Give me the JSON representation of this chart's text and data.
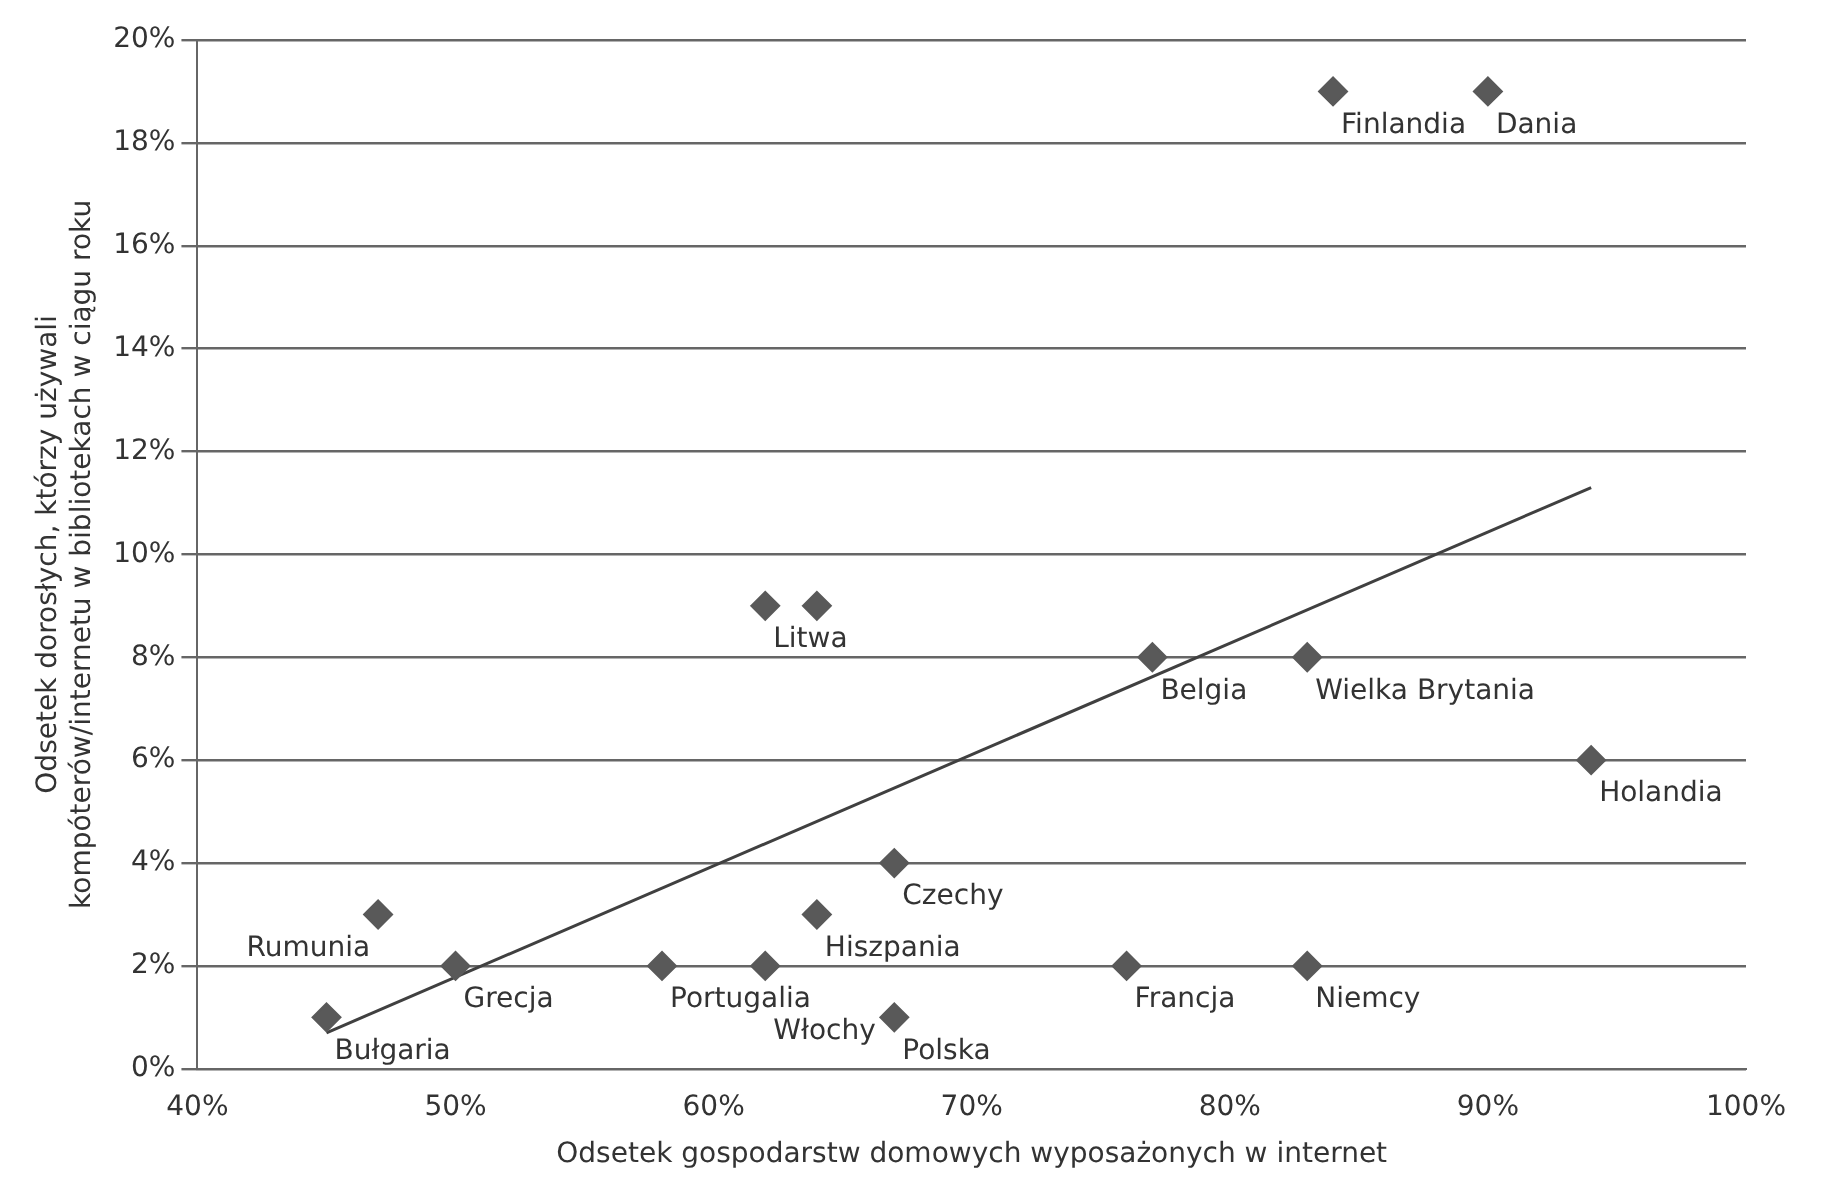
{
  "chart_data": {
    "type": "scatter",
    "xlabel": "Odsetek gospodarstw domowych wyposażonych w internet",
    "ylabel": "Odsetek dorosłych, którzy używali kompóterów/internetu w bibliotekach w ciągu roku",
    "series": [
      {
        "type": "scatter",
        "color": "#595959",
        "marker": "diamond",
        "x": [
          84,
          90,
          62,
          64,
          77,
          83,
          94,
          67,
          64,
          47,
          50,
          58,
          62,
          67,
          76,
          83,
          45
        ],
        "values": [
          19,
          19,
          9,
          9,
          8,
          8,
          6,
          4,
          3,
          3,
          2,
          2,
          2,
          1,
          2,
          2,
          1
        ]
      },
      {
        "type": "line",
        "color": "#404040",
        "marker": "none",
        "line_style": "solid",
        "x": [
          45,
          94
        ],
        "values": [
          0.7,
          11.3
        ]
      }
    ],
    "annotations": [
      {
        "text": "Finlandia",
        "x": 84,
        "y": 19
      },
      {
        "text": "Dania",
        "x": 90,
        "y": 19
      },
      {
        "text": "Litwa",
        "x": 62,
        "y": 9
      },
      {
        "text": "Belgia",
        "x": 77,
        "y": 8
      },
      {
        "text": "Wielka Brytania",
        "x": 83,
        "y": 8
      },
      {
        "text": "Holandia",
        "x": 94,
        "y": 6
      },
      {
        "text": "Czechy",
        "x": 67,
        "y": 4
      },
      {
        "text": "Hiszpania",
        "x": 64,
        "y": 3
      },
      {
        "text": "Rumunia",
        "x": 47,
        "y": 3
      },
      {
        "text": "Grecja",
        "x": 50,
        "y": 2
      },
      {
        "text": "Portugalia",
        "x": 58,
        "y": 2
      },
      {
        "text": "Włochy",
        "x": 62,
        "y": 2
      },
      {
        "text": "Polska",
        "x": 67,
        "y": 1
      },
      {
        "text": "Francja",
        "x": 76,
        "y": 2
      },
      {
        "text": "Niemcy",
        "x": 83,
        "y": 2
      },
      {
        "text": "Bułgaria",
        "x": 45,
        "y": 1
      }
    ],
    "xlim": [
      40,
      100
    ],
    "xticks": [
      {
        "value": 40,
        "label": "40%"
      },
      {
        "value": 50,
        "label": "50%"
      },
      {
        "value": 60,
        "label": "60%"
      },
      {
        "value": 70,
        "label": "70%"
      },
      {
        "value": 80,
        "label": "80%"
      },
      {
        "value": 90,
        "label": "90%"
      },
      {
        "value": 100,
        "label": "100%"
      }
    ],
    "ylim": [
      0,
      20
    ],
    "yticks": [
      {
        "value": 0,
        "label": "0%"
      },
      {
        "value": 2,
        "label": "2%"
      },
      {
        "value": 4,
        "label": "4%"
      },
      {
        "value": 6,
        "label": "6%"
      },
      {
        "value": 8,
        "label": "8%"
      },
      {
        "value": 10,
        "label": "10%"
      },
      {
        "value": 12,
        "label": "12%"
      },
      {
        "value": 14,
        "label": "14%"
      },
      {
        "value": 16,
        "label": "16%"
      },
      {
        "value": 18,
        "label": "18%"
      },
      {
        "value": 20,
        "label": "20%"
      }
    ],
    "grid": "y",
    "legend": false
  }
}
